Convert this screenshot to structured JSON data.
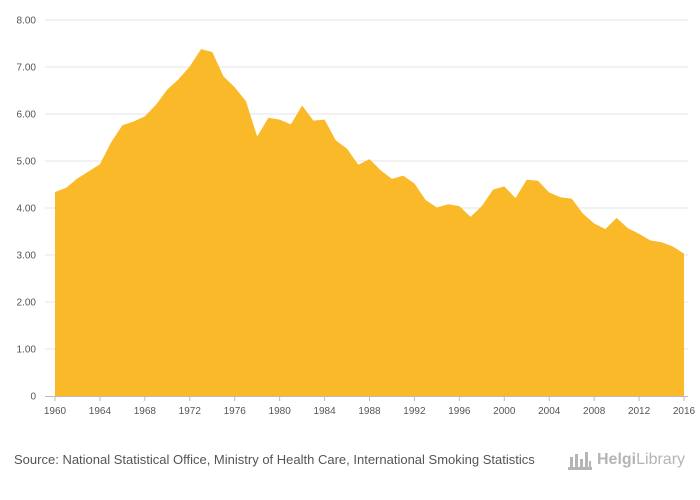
{
  "chart_data": {
    "type": "area",
    "x": [
      1960,
      1961,
      1962,
      1963,
      1964,
      1965,
      1966,
      1967,
      1968,
      1969,
      1970,
      1971,
      1972,
      1973,
      1974,
      1975,
      1976,
      1977,
      1978,
      1979,
      1980,
      1981,
      1982,
      1983,
      1984,
      1985,
      1986,
      1987,
      1988,
      1989,
      1990,
      1991,
      1992,
      1993,
      1994,
      1995,
      1996,
      1997,
      1998,
      1999,
      2000,
      2001,
      2002,
      2003,
      2004,
      2005,
      2006,
      2007,
      2008,
      2009,
      2010,
      2011,
      2012,
      2013,
      2014,
      2015,
      2016
    ],
    "series": [
      {
        "values": [
          4.34,
          4.43,
          4.63,
          4.78,
          4.93,
          5.4,
          5.76,
          5.84,
          5.95,
          6.2,
          6.52,
          6.74,
          7.01,
          7.38,
          7.32,
          6.8,
          6.57,
          6.27,
          5.52,
          5.92,
          5.88,
          5.78,
          6.18,
          5.86,
          5.88,
          5.44,
          5.26,
          4.92,
          5.04,
          4.8,
          4.62,
          4.69,
          4.52,
          4.17,
          4.01,
          4.08,
          4.04,
          3.81,
          4.04,
          4.39,
          4.46,
          4.21,
          4.6,
          4.58,
          4.33,
          4.23,
          4.2,
          3.88,
          3.67,
          3.55,
          3.79,
          3.57,
          3.45,
          3.31,
          3.27,
          3.18,
          3.03
        ],
        "color": "#f9b928"
      }
    ],
    "y_ticks": [
      "0",
      "1.00",
      "2.00",
      "3.00",
      "4.00",
      "5.00",
      "6.00",
      "7.00",
      "8.00"
    ],
    "x_ticks": [
      "1960",
      "1964",
      "1968",
      "1972",
      "1976",
      "1980",
      "1984",
      "1988",
      "1992",
      "1996",
      "2000",
      "2004",
      "2008",
      "2012",
      "2016"
    ],
    "ylim": [
      0,
      8
    ],
    "xlim": [
      1960,
      2016
    ],
    "grid": true,
    "title": "",
    "xlabel": "",
    "ylabel": ""
  },
  "footer": {
    "source_prefix": "Source:",
    "source_text": "National Statistical Office, Ministry of Health Care, International Smoking Statistics"
  },
  "logo": {
    "word_bold": "Helgi",
    "word_regular": "Library",
    "color": "#b5b5b5"
  }
}
